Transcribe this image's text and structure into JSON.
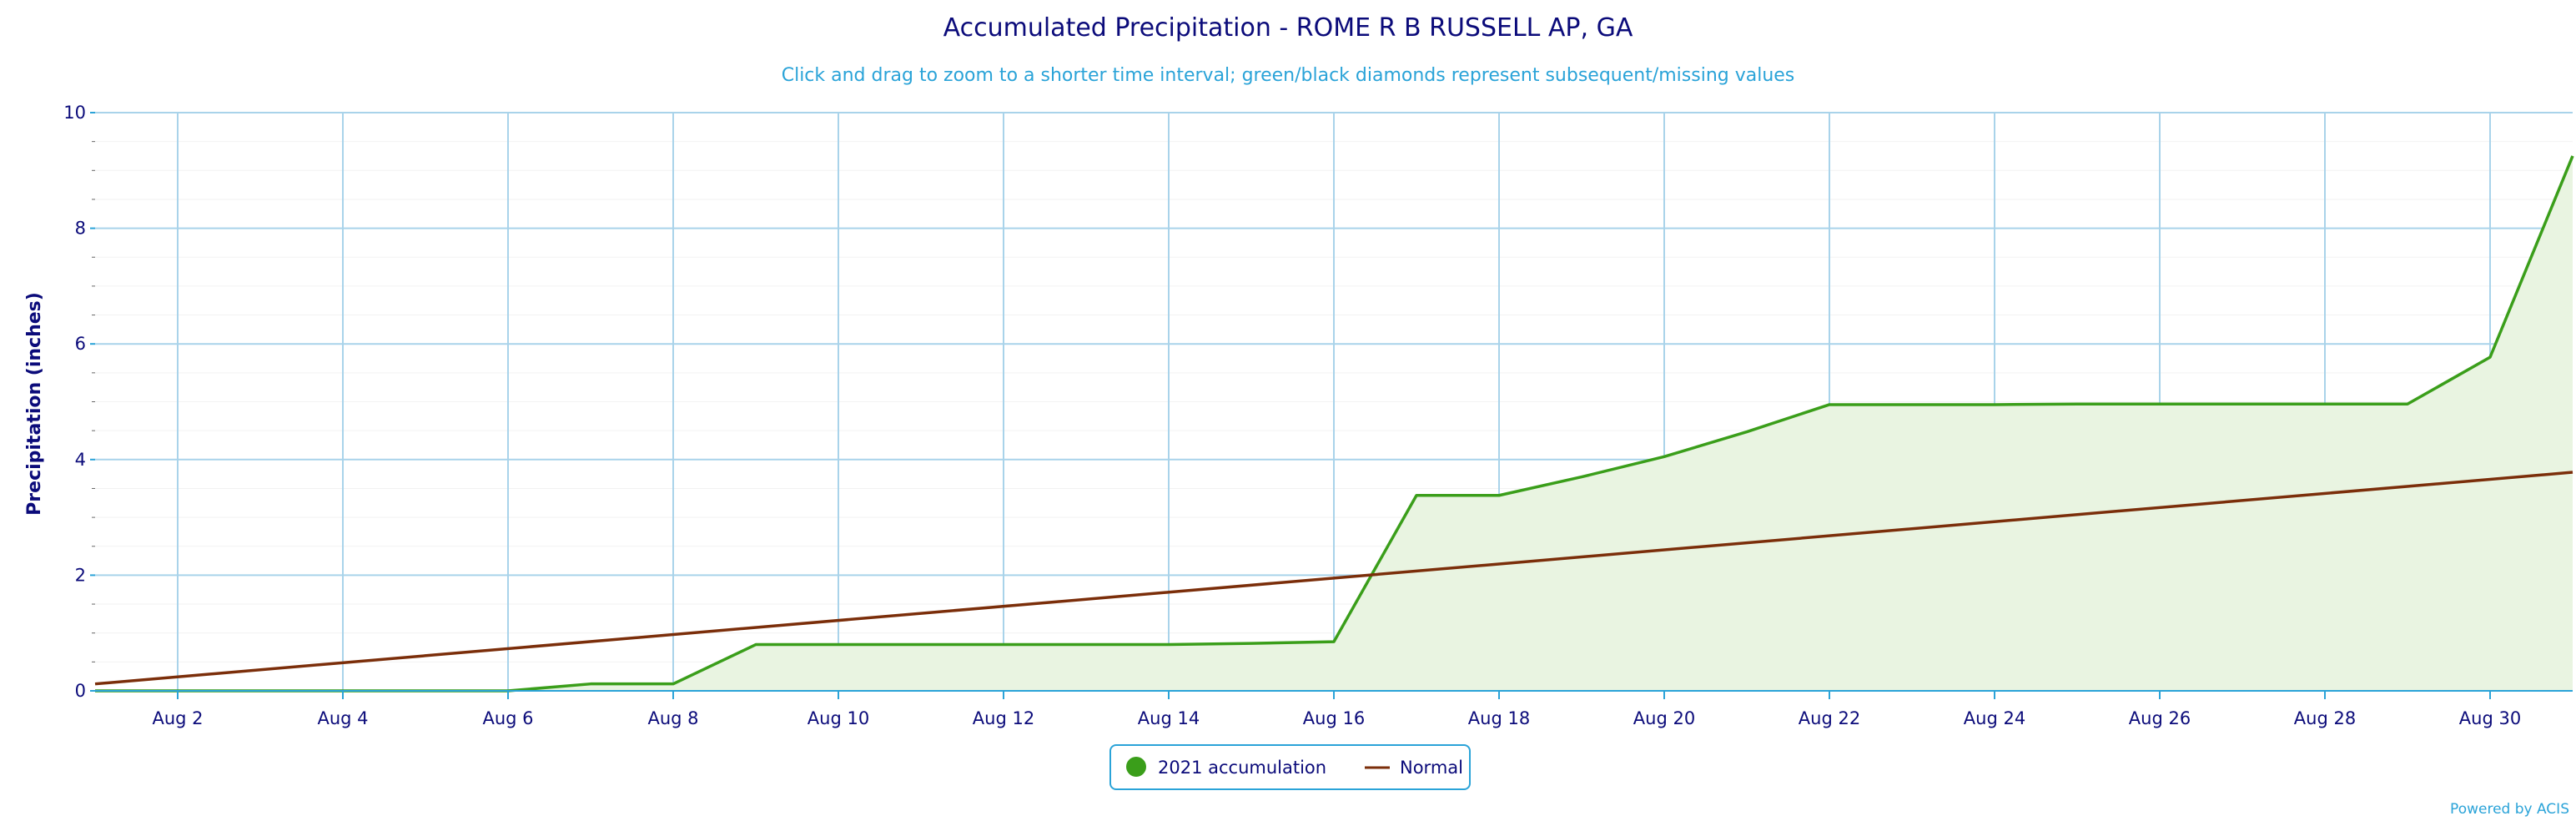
{
  "chart_data": {
    "type": "line",
    "title": "Accumulated Precipitation - ROME R B RUSSELL AP, GA",
    "subtitle": "Click and drag to zoom to a shorter time interval; green/black diamonds represent subsequent/missing values",
    "ylabel": "Precipitation (inches)",
    "xlabel": "",
    "ylim": [
      0,
      10
    ],
    "xlim": [
      1,
      31
    ],
    "y_ticks": [
      "0",
      "2",
      "4",
      "6",
      "8",
      "10"
    ],
    "x_ticks": [
      {
        "day": 2,
        "label": "Aug 2"
      },
      {
        "day": 4,
        "label": "Aug 4"
      },
      {
        "day": 6,
        "label": "Aug 6"
      },
      {
        "day": 8,
        "label": "Aug 8"
      },
      {
        "day": 10,
        "label": "Aug 10"
      },
      {
        "day": 12,
        "label": "Aug 12"
      },
      {
        "day": 14,
        "label": "Aug 14"
      },
      {
        "day": 16,
        "label": "Aug 16"
      },
      {
        "day": 18,
        "label": "Aug 18"
      },
      {
        "day": 20,
        "label": "Aug 20"
      },
      {
        "day": 22,
        "label": "Aug 22"
      },
      {
        "day": 24,
        "label": "Aug 24"
      },
      {
        "day": 26,
        "label": "Aug 26"
      },
      {
        "day": 28,
        "label": "Aug 28"
      },
      {
        "day": 30,
        "label": "Aug 30"
      }
    ],
    "grid": true,
    "legend_position": "bottom-center",
    "series": [
      {
        "name": "2021 accumulation",
        "color": "#3a9e1a",
        "fill": "#e9f4e1",
        "style": "area-line",
        "x": [
          1,
          2,
          3,
          4,
          5,
          6,
          7,
          8,
          9,
          10,
          11,
          12,
          13,
          14,
          15,
          16,
          17,
          18,
          19,
          20,
          21,
          22,
          23,
          24,
          25,
          26,
          27,
          28,
          29,
          30,
          31
        ],
        "y": [
          0,
          0,
          0,
          0,
          0,
          0,
          0.12,
          0.12,
          0.8,
          0.8,
          0.8,
          0.8,
          0.8,
          0.8,
          0.82,
          0.85,
          3.38,
          3.38,
          3.7,
          4.05,
          4.48,
          4.95,
          4.95,
          4.95,
          4.96,
          4.96,
          4.96,
          4.96,
          4.96,
          5.77,
          9.25
        ]
      },
      {
        "name": "Normal",
        "color": "#7b2e0a",
        "style": "line",
        "x": [
          1,
          31
        ],
        "y": [
          0.12,
          3.78
        ]
      }
    ]
  },
  "credit": "Powered by ACIS"
}
